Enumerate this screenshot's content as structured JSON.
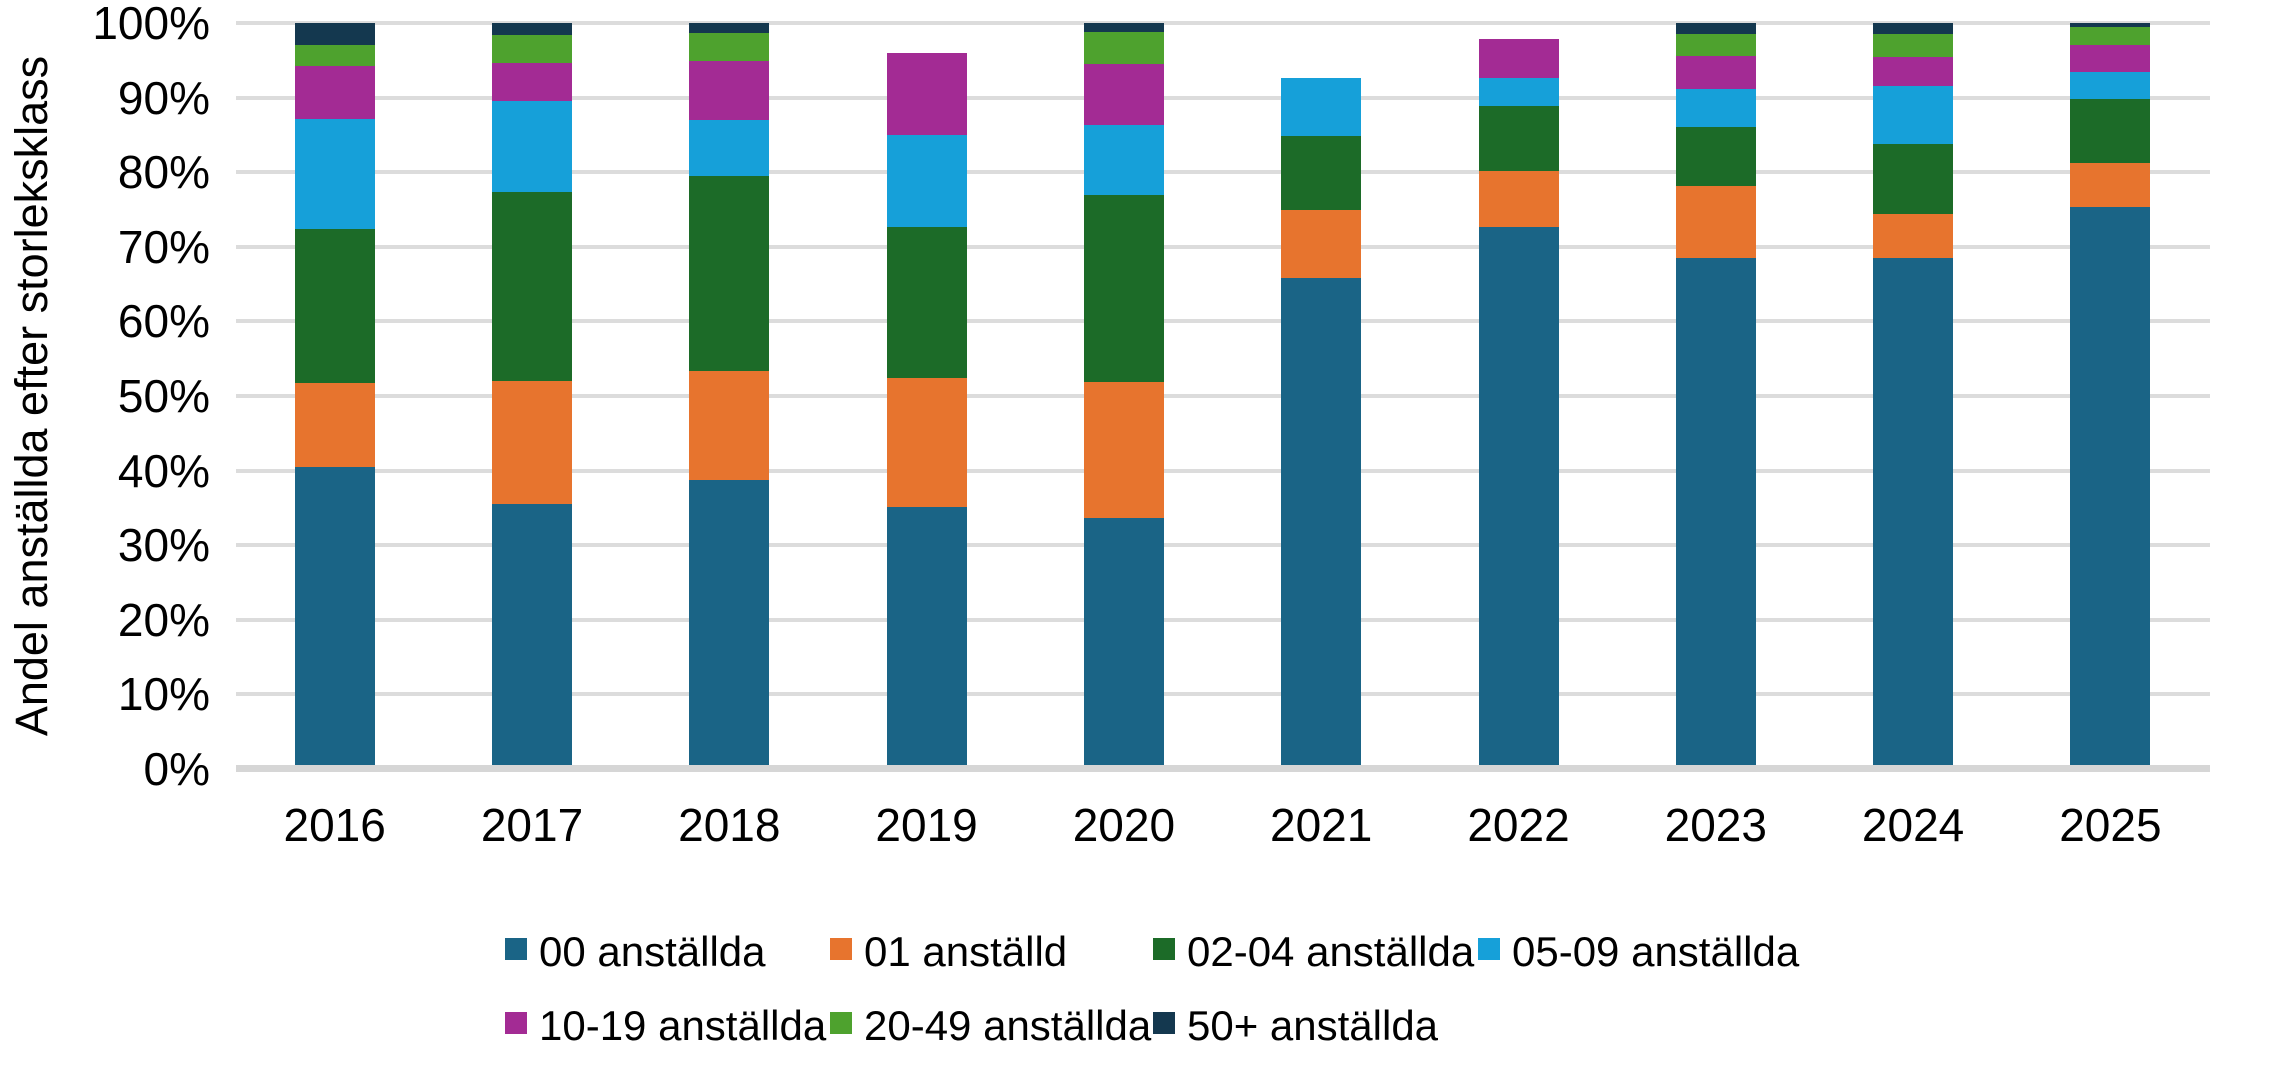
{
  "chart_data": {
    "type": "bar",
    "variant": "stacked-100-percent-vertical",
    "title": "",
    "xlabel": "",
    "ylabel": "Andel anställda efter storleksklass",
    "categories": [
      "2016",
      "2017",
      "2018",
      "2019",
      "2020",
      "2021",
      "2022",
      "2023",
      "2024",
      "2025"
    ],
    "series": [
      {
        "name": "00 anställda",
        "color": "#1a6486",
        "values": [
          40.5,
          35.5,
          38.8,
          35.1,
          33.6,
          65.8,
          72.7,
          68.5,
          68.5,
          75.3
        ]
      },
      {
        "name": "01 anställd",
        "color": "#e7742e",
        "values": [
          11.2,
          16.5,
          14.6,
          17.3,
          18.3,
          9.1,
          7.5,
          9.6,
          5.9,
          5.9
        ]
      },
      {
        "name": "02-04 anställda",
        "color": "#1c6b28",
        "values": [
          20.7,
          25.4,
          26.1,
          20.2,
          25.1,
          9.9,
          8.7,
          7.9,
          9.4,
          8.6
        ]
      },
      {
        "name": "05-09 anställda",
        "color": "#16a0d9",
        "values": [
          14.7,
          12.2,
          7.5,
          12.4,
          9.3,
          7.8,
          3.7,
          5.2,
          7.8,
          3.7
        ]
      },
      {
        "name": "10-19 anställda",
        "color": "#a32b94",
        "values": [
          7.2,
          5.0,
          7.9,
          11.0,
          8.2,
          0.0,
          5.3,
          4.4,
          3.8,
          3.5
        ]
      },
      {
        "name": "20-49 anställda",
        "color": "#4ea22e",
        "values": [
          2.8,
          3.8,
          3.7,
          0.0,
          4.3,
          0.0,
          0.0,
          2.9,
          3.1,
          2.5
        ]
      },
      {
        "name": "50+ anställda",
        "color": "#14384f",
        "values": [
          2.9,
          1.6,
          1.4,
          0.0,
          1.2,
          0.0,
          0.0,
          1.5,
          1.5,
          0.5
        ]
      }
    ],
    "bar_totals_percent": [
      100.0,
      100.0,
      100.0,
      96.0,
      100.0,
      92.6,
      97.9,
      100.0,
      100.0,
      100.0
    ],
    "y_axis": {
      "min": 0,
      "max": 100,
      "tick_step": 10,
      "tick_labels": [
        "0%",
        "10%",
        "20%",
        "30%",
        "40%",
        "50%",
        "60%",
        "70%",
        "80%",
        "90%",
        "100%"
      ]
    },
    "grid": "horizontal",
    "legend_position": "bottom",
    "legend_rows": [
      [
        "00 anställda",
        "01 anställd",
        "02-04 anställda",
        "05-09 anställda"
      ],
      [
        "10-19 anställda",
        "20-49 anställda",
        "50+ anställda"
      ]
    ]
  },
  "colors": {
    "background": "#ffffff",
    "gridline": "#dcdcdc",
    "axis_line": "#d6d6d6",
    "text": "#000000"
  }
}
